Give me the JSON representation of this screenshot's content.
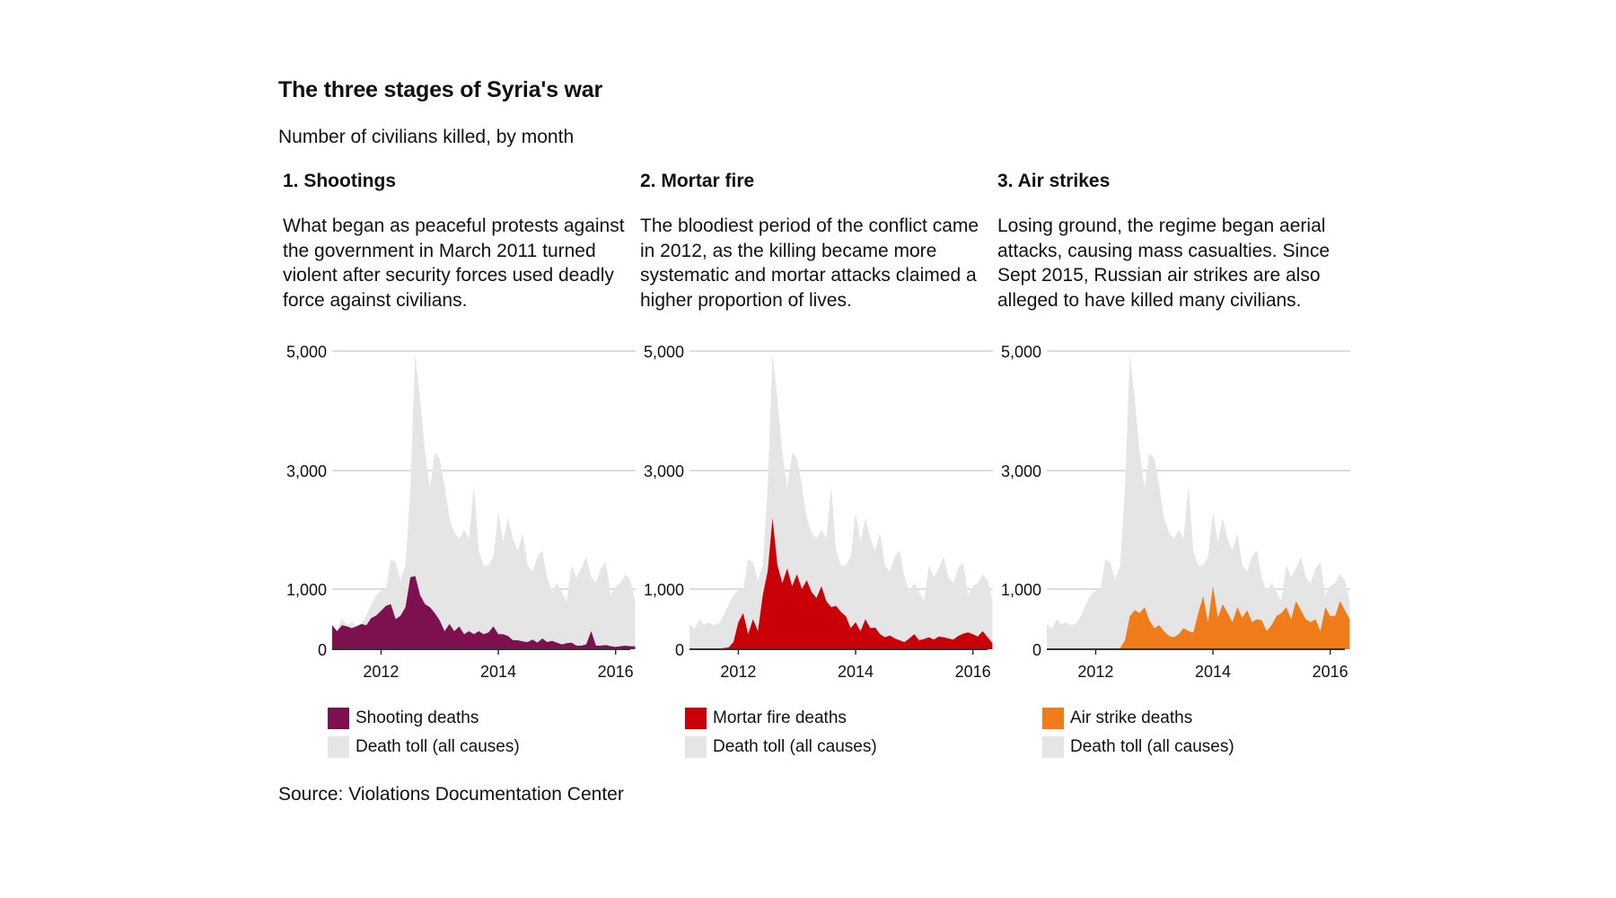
{
  "title": "The three stages of Syria's war",
  "subtitle": "Number of civilians killed, by month",
  "source": "Source: Violations Documentation Center",
  "colors": {
    "total": "#e5e5e5",
    "shooting": "#7d1150",
    "mortar": "#c90008",
    "air": "#ef7b19",
    "grid": "#d0d0d0",
    "axis": "#333333"
  },
  "panels": [
    {
      "heading": "1. Shootings",
      "description": "What began as peaceful protests against the government in March 2011 turned violent after security forces used deadly force against civilians.",
      "legend_main": "Shooting deaths",
      "legend_total": "Death toll (all causes)",
      "series_key": "shooting",
      "color_key": "shooting"
    },
    {
      "heading": "2. Mortar fire",
      "description": "The bloodiest period of the conflict came in 2012, as the killing became more systematic and mortar attacks claimed a higher proportion of lives.",
      "legend_main": "Mortar fire deaths",
      "legend_total": "Death toll (all causes)",
      "series_key": "mortar",
      "color_key": "mortar"
    },
    {
      "heading": "3. Air strikes",
      "description": "Losing ground, the regime began aerial attacks, causing mass casualties. Since Sept 2015, Russian air strikes are also alleged to have killed many civilians.",
      "legend_main": "Air strike deaths",
      "legend_total": "Death toll (all causes)",
      "series_key": "air",
      "color_key": "air"
    }
  ],
  "chart_data": {
    "type": "area",
    "x_start": "2011-03",
    "x_end": "2016-04",
    "xticks": [
      "2012",
      "2014",
      "2016"
    ],
    "ytick_labels": [
      "5,000",
      "3,000",
      "1,000",
      "0"
    ],
    "yticks": [
      5000,
      3000,
      1000,
      0
    ],
    "ylim": [
      0,
      5000
    ],
    "series": [
      {
        "name": "Death toll (all causes)",
        "key": "total",
        "values": [
          420,
          330,
          500,
          410,
          450,
          400,
          430,
          560,
          750,
          900,
          980,
          1000,
          1500,
          1450,
          1150,
          1400,
          2700,
          4950,
          4200,
          3300,
          2700,
          3300,
          3200,
          2750,
          2200,
          1950,
          1850,
          2000,
          1850,
          2750,
          1650,
          1400,
          1400,
          1550,
          2300,
          1800,
          2200,
          1850,
          1650,
          1950,
          1400,
          1300,
          1550,
          1650,
          1200,
          950,
          1100,
          950,
          800,
          1400,
          1200,
          1350,
          1550,
          1200,
          1100,
          1350,
          1450,
          900,
          1050,
          1100,
          1250,
          1150,
          800
        ]
      },
      {
        "name": "Shooting deaths",
        "key": "shooting",
        "values": [
          400,
          300,
          400,
          380,
          350,
          380,
          420,
          400,
          520,
          560,
          640,
          720,
          750,
          500,
          560,
          700,
          1200,
          1220,
          900,
          750,
          700,
          600,
          480,
          300,
          420,
          300,
          380,
          250,
          300,
          250,
          300,
          250,
          280,
          380,
          250,
          250,
          220,
          150,
          150,
          130,
          120,
          160,
          110,
          180,
          120,
          140,
          110,
          80,
          100,
          110,
          60,
          60,
          80,
          300,
          60,
          60,
          70,
          50,
          40,
          50,
          60,
          50,
          50
        ]
      },
      {
        "name": "Mortar fire deaths",
        "key": "mortar",
        "values": [
          10,
          10,
          10,
          10,
          15,
          10,
          10,
          20,
          30,
          120,
          450,
          600,
          250,
          500,
          300,
          900,
          1300,
          2200,
          1400,
          1100,
          1350,
          1050,
          1250,
          1000,
          1150,
          950,
          850,
          1050,
          800,
          700,
          720,
          620,
          550,
          350,
          450,
          300,
          500,
          350,
          360,
          250,
          200,
          230,
          180,
          150,
          120,
          180,
          250,
          150,
          170,
          200,
          160,
          210,
          200,
          180,
          160,
          220,
          260,
          280,
          250,
          210,
          300,
          200,
          100
        ]
      },
      {
        "name": "Air strike deaths",
        "key": "air",
        "values": [
          5,
          5,
          5,
          5,
          5,
          5,
          5,
          5,
          5,
          5,
          5,
          5,
          5,
          5,
          5,
          20,
          150,
          550,
          650,
          600,
          700,
          480,
          350,
          400,
          300,
          220,
          200,
          250,
          350,
          300,
          280,
          600,
          880,
          450,
          1050,
          520,
          750,
          600,
          450,
          700,
          520,
          650,
          450,
          500,
          480,
          300,
          400,
          550,
          600,
          700,
          500,
          800,
          650,
          500,
          450,
          500,
          300,
          700,
          550,
          550,
          800,
          650,
          500
        ]
      }
    ]
  }
}
